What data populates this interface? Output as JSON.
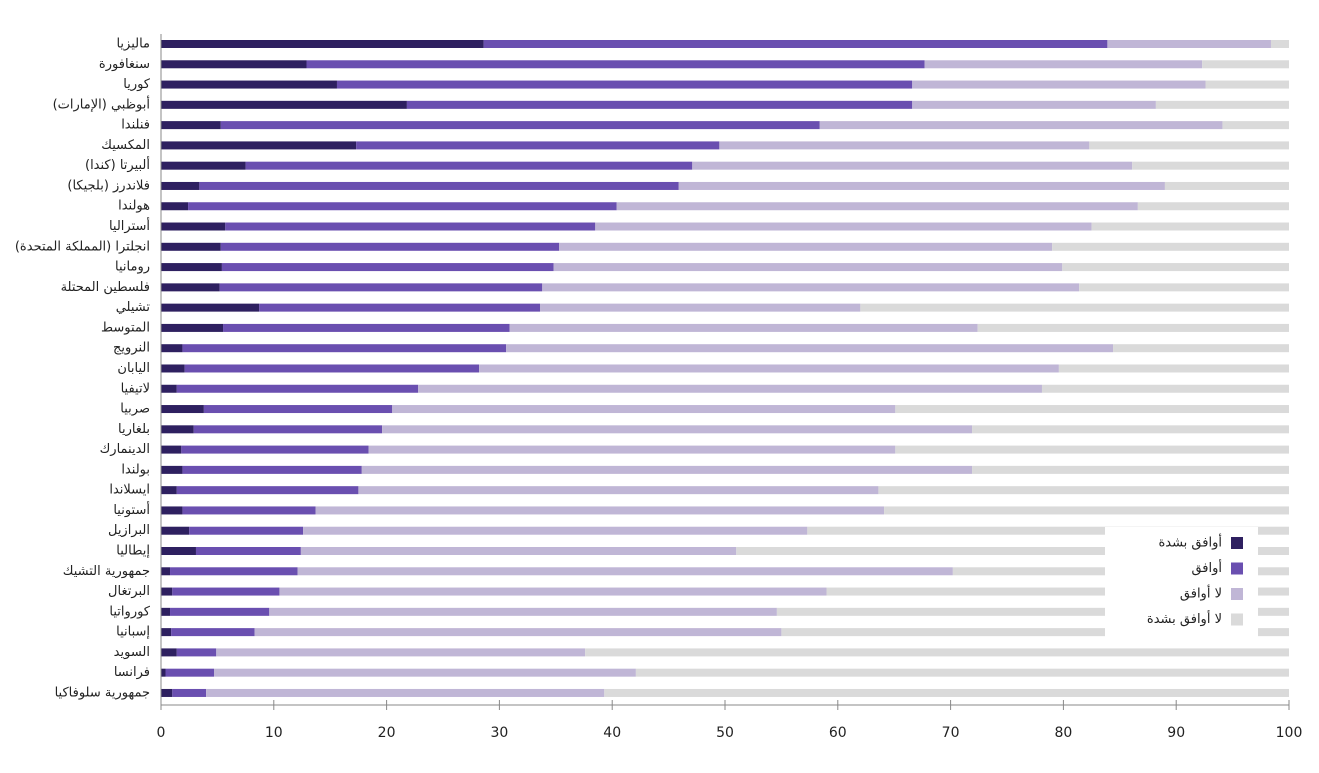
{
  "chart_data": {
    "type": "stacked-barh",
    "categories": [
      "ماليزيا",
      "سنغافورة",
      "كوريا",
      "أبوظبي (الإمارات)",
      "فنلندا",
      "المكسيك",
      "ألبيرتا (كندا)",
      "فلاندرز (بلجيكا)",
      "هولندا",
      "أستراليا",
      "انجلترا (المملكة المتحدة)",
      "رومانيا",
      "فلسطين المحتلة",
      "تشيلي",
      "المتوسط",
      "النرويج",
      "اليابان",
      "لاتيفيا",
      "صربيا",
      "بلغاريا",
      "الدينمارك",
      "بولندا",
      "ايسلاندا",
      "أستونيا",
      "البرازيل",
      "إيطاليا",
      "جمهورية التشيك",
      "البرتغال",
      "كورواتيا",
      "إسبانيا",
      "السويد",
      "فرانسا",
      "جمهورية سلوفاكيا"
    ],
    "series": [
      {
        "name": "أوافق بشدة",
        "color": "#2e2060",
        "values": [
          28.6,
          12.9,
          15.6,
          21.8,
          5.3,
          17.3,
          7.5,
          3.4,
          2.4,
          5.7,
          5.3,
          5.4,
          5.2,
          8.7,
          5.5,
          1.9,
          2.1,
          1.4,
          3.8,
          2.9,
          1.8,
          1.9,
          1.4,
          1.9,
          2.5,
          3.1,
          0.8,
          1.0,
          0.8,
          0.9,
          1.4,
          0.4,
          1.0
        ]
      },
      {
        "name": "أوافق",
        "color": "#6a4fb0",
        "values": [
          55.3,
          54.8,
          51.0,
          44.8,
          53.1,
          32.2,
          39.6,
          42.5,
          38.0,
          32.8,
          30.0,
          29.4,
          28.6,
          24.9,
          25.4,
          28.7,
          26.1,
          21.4,
          16.7,
          16.7,
          16.6,
          15.9,
          16.1,
          11.8,
          10.1,
          9.3,
          11.3,
          9.5,
          8.8,
          7.4,
          3.5,
          4.3,
          3.0
        ]
      },
      {
        "name": "لا أوافق",
        "color": "#c0b6d6",
        "values": [
          14.5,
          24.6,
          26.0,
          21.6,
          35.7,
          32.8,
          39.0,
          43.1,
          46.2,
          44.0,
          43.7,
          45.1,
          47.6,
          28.4,
          41.5,
          53.8,
          51.4,
          55.3,
          44.6,
          52.3,
          46.7,
          54.1,
          46.1,
          50.4,
          44.7,
          38.6,
          58.1,
          48.5,
          45.0,
          46.7,
          32.7,
          37.4,
          35.3
        ]
      },
      {
        "name": "لا أوافق بشدة",
        "color": "#dadada",
        "values": [
          1.6,
          7.7,
          7.4,
          11.8,
          5.9,
          17.7,
          13.9,
          11.0,
          13.4,
          17.5,
          21.0,
          20.1,
          18.6,
          38.0,
          27.6,
          15.6,
          20.4,
          21.9,
          34.9,
          28.1,
          34.9,
          28.1,
          36.4,
          35.9,
          42.7,
          49.0,
          29.8,
          41.0,
          45.4,
          45.0,
          62.4,
          57.9,
          60.7
        ]
      }
    ],
    "xlim": [
      0,
      100
    ],
    "xticks": [
      0,
      10,
      20,
      30,
      40,
      50,
      60,
      70,
      80,
      90,
      100
    ],
    "legend": "lower right"
  }
}
